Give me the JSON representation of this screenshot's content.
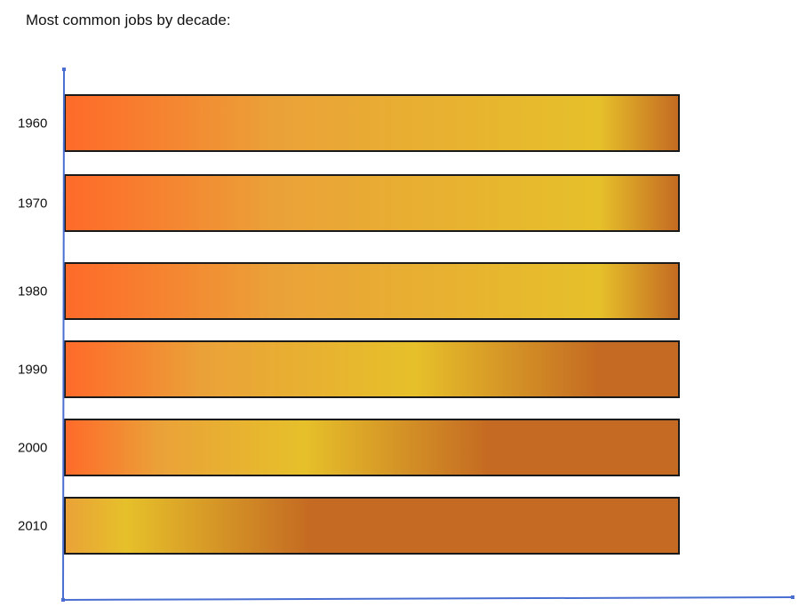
{
  "chart_data": {
    "type": "bar",
    "title": "Most common jobs by decade:",
    "xlabel": "",
    "ylabel": "",
    "categories": [
      "1960",
      "1970",
      "1980",
      "1990",
      "2000",
      "2010"
    ],
    "bars": [
      {
        "category": "1960",
        "highlight_position": 0.87
      },
      {
        "category": "1970",
        "highlight_position": 0.87
      },
      {
        "category": "1980",
        "highlight_position": 0.87
      },
      {
        "category": "1990",
        "highlight_position": 0.57
      },
      {
        "category": "2000",
        "highlight_position": 0.39
      },
      {
        "category": "2010",
        "highlight_position": 0.1
      }
    ],
    "grid": false,
    "legend": "none",
    "colors": {
      "axis": "#4a6fd1",
      "bar_outline": "#1a1a1a",
      "gradient_start": "#ff6a2a",
      "gradient_mid": "#eaa238",
      "gradient_highlight": "#e6c02a",
      "gradient_end": "#c46a22"
    }
  }
}
